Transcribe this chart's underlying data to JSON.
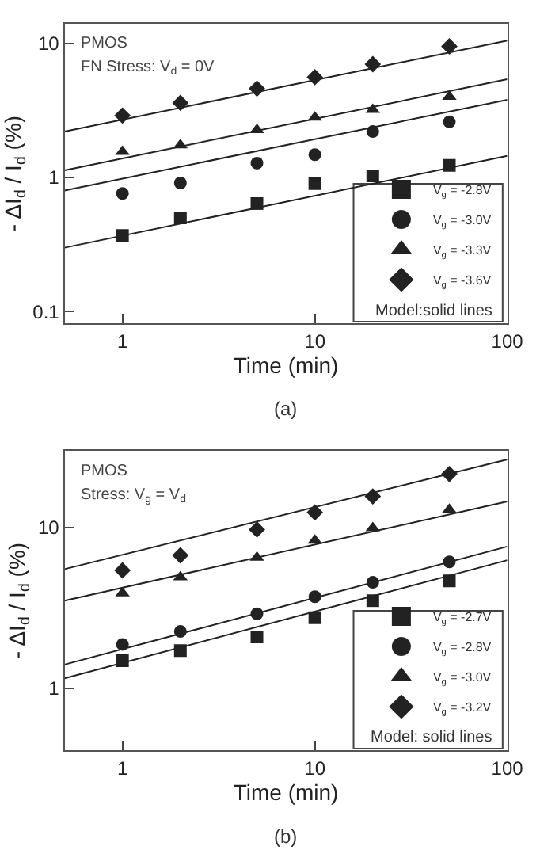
{
  "chart_data": [
    {
      "type": "scatter",
      "log": "xy",
      "xlabel": "Time (min)",
      "ylabel": "- ΔI$_{d}$ / I$_{d}$ (%)",
      "xlim": [
        0.5,
        100
      ],
      "ylim": [
        0.082,
        14
      ],
      "xticks": [
        1,
        10,
        100
      ],
      "yticks": [
        0.1,
        1,
        10
      ],
      "legend": "bottom right",
      "annotations": [
        "PMOS",
        "FN Stress: V$_{d}$ = 0V",
        "Model:solid lines",
        "(a)"
      ],
      "series": [
        {
          "name": "V$_{g}$ = -2.8V",
          "color": "#222222",
          "marker": "square",
          "x": [
            1,
            2,
            5,
            10,
            20,
            50
          ],
          "values": [
            0.37,
            0.5,
            0.64,
            0.9,
            1.03,
            1.23
          ]
        },
        {
          "name": "V$_{g}$ = -3.0V",
          "color": "#222222",
          "marker": "circle",
          "x": [
            1,
            2,
            5,
            10,
            20,
            50
          ],
          "values": [
            0.76,
            0.91,
            1.28,
            1.48,
            2.2,
            2.6
          ]
        },
        {
          "name": "V$_{g}$ = -3.3V",
          "color": "#222222",
          "marker": "triangle",
          "x": [
            1,
            2,
            5,
            10,
            20,
            50
          ],
          "values": [
            1.56,
            1.74,
            2.26,
            2.8,
            3.2,
            4.0
          ]
        },
        {
          "name": "V$_{g}$ = -3.6V",
          "color": "#222222",
          "marker": "diamond",
          "x": [
            1,
            2,
            5,
            10,
            20,
            50
          ],
          "values": [
            2.9,
            3.6,
            4.6,
            5.6,
            7.0,
            9.5
          ]
        },
        {
          "type": "line",
          "color": "#222222",
          "marker": "none",
          "x": [
            0.5,
            100
          ],
          "values": [
            0.3,
            1.45
          ]
        },
        {
          "type": "line",
          "color": "#222222",
          "marker": "none",
          "x": [
            0.5,
            100
          ],
          "values": [
            0.8,
            3.8
          ]
        },
        {
          "type": "line",
          "color": "#222222",
          "marker": "none",
          "x": [
            0.5,
            100
          ],
          "values": [
            1.13,
            5.4
          ]
        },
        {
          "type": "line",
          "color": "#222222",
          "marker": "none",
          "x": [
            0.5,
            100
          ],
          "values": [
            2.2,
            10.5
          ]
        }
      ]
    },
    {
      "type": "scatter",
      "log": "xy",
      "xlabel": "Time (min)",
      "ylabel": "- ΔI$_{d}$ / I$_{d}$ (%)",
      "xlim": [
        0.5,
        100
      ],
      "ylim": [
        0.41,
        30
      ],
      "xticks": [
        1,
        10,
        100
      ],
      "yticks": [
        1,
        10
      ],
      "legend": "bottom right",
      "annotations": [
        "PMOS",
        "Stress: V$_{g}$ = V$_{d}$",
        "Model: solid lines",
        "(b)"
      ],
      "series": [
        {
          "name": "V$_{g}$ = -2.7V",
          "color": "#222222",
          "marker": "square",
          "x": [
            1,
            2,
            5,
            10,
            20,
            50
          ],
          "values": [
            1.48,
            1.71,
            2.08,
            2.74,
            3.5,
            4.65
          ]
        },
        {
          "name": "V$_{g}$ = -2.8V",
          "color": "#222222",
          "marker": "circle",
          "x": [
            1,
            2,
            5,
            10,
            20,
            50
          ],
          "values": [
            1.87,
            2.25,
            2.9,
            3.7,
            4.55,
            6.1
          ]
        },
        {
          "name": "V$_{g}$ = -3.0V",
          "color": "#222222",
          "marker": "triangle",
          "x": [
            1,
            2,
            5,
            10,
            20,
            50
          ],
          "values": [
            3.9,
            4.9,
            6.5,
            8.3,
            9.9,
            12.9
          ]
        },
        {
          "name": "V$_{g}$ = -3.2V",
          "color": "#222222",
          "marker": "diamond",
          "x": [
            1,
            2,
            5,
            10,
            20,
            50
          ],
          "values": [
            5.4,
            6.7,
            9.7,
            12.4,
            15.6,
            21.5
          ]
        },
        {
          "type": "line",
          "color": "#222222",
          "marker": "none",
          "x": [
            0.5,
            100
          ],
          "values": [
            1.15,
            6.25
          ]
        },
        {
          "type": "line",
          "color": "#222222",
          "marker": "none",
          "x": [
            0.5,
            100
          ],
          "values": [
            1.4,
            7.6
          ]
        },
        {
          "type": "line",
          "color": "#222222",
          "marker": "none",
          "x": [
            0.5,
            100
          ],
          "values": [
            3.5,
            14.5
          ]
        },
        {
          "type": "line",
          "color": "#222222",
          "marker": "none",
          "x": [
            0.5,
            100
          ],
          "values": [
            5.5,
            26.5
          ]
        }
      ]
    }
  ]
}
